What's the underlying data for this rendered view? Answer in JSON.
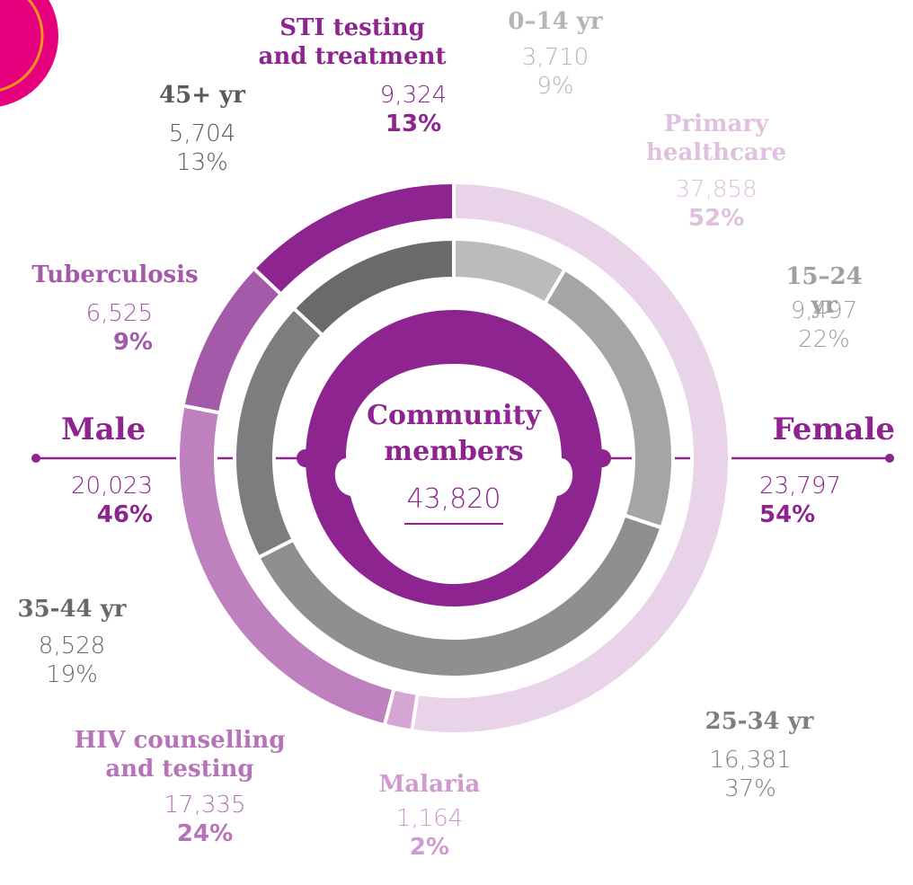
{
  "chart_data": {
    "type": "nested-donut",
    "center": {
      "title": "Community\nmembers",
      "total": "43,820"
    },
    "split": {
      "categories": [
        "Male",
        "Female"
      ],
      "value_labels": [
        "20,023",
        "23,797"
      ],
      "percent_labels": [
        "46%",
        "54%"
      ],
      "color": "#8e2490"
    },
    "rings": [
      {
        "categories": [
          "Primary\nhealthcare",
          "Malaria",
          "HIV counselling\nand testing",
          "Tuberculosis",
          "STI testing\nand treatment"
        ],
        "values": [
          37858,
          1164,
          17335,
          6525,
          9324
        ],
        "value_labels": [
          "37,858",
          "1,164",
          "17,335",
          "6,525",
          "9,324"
        ],
        "percent_labels": [
          "52%",
          "2%",
          "24%",
          "9%",
          "13%"
        ],
        "colors": [
          "#e8d3e8",
          "#d5a5d4",
          "#bf80c0",
          "#a35aa8",
          "#8e2490"
        ]
      },
      {
        "categories": [
          "0–14 yr",
          "15–24 yr",
          "25-34 yr",
          "35-44 yr",
          "45+ yr"
        ],
        "values": [
          3710,
          9497,
          16381,
          8528,
          5704
        ],
        "value_labels": [
          "3,710",
          "9,497",
          "16,381",
          "8,528",
          "5,704"
        ],
        "percent_labels": [
          "9%",
          "22%",
          "37%",
          "19%",
          "13%"
        ],
        "colors": [
          "#bbbbbd",
          "#a5a5a7",
          "#8f8f92",
          "#7d7d80",
          "#6a6a6d"
        ]
      }
    ]
  }
}
